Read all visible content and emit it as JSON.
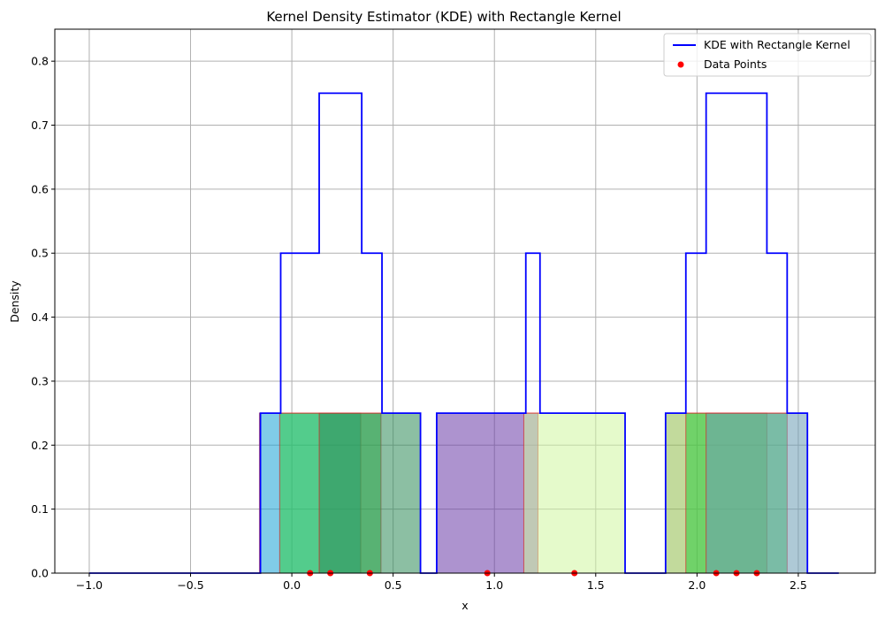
{
  "chart_data": {
    "type": "line",
    "title": "Kernel Density Estimator (KDE) with Rectangle Kernel",
    "xlabel": "x",
    "ylabel": "Density",
    "xlim": [
      -1.17,
      2.88
    ],
    "ylim": [
      0,
      0.85
    ],
    "xticks": [
      -1.0,
      -0.5,
      0.0,
      0.5,
      1.0,
      1.5,
      2.0,
      2.5
    ],
    "xtick_labels": [
      "−1.0",
      "−0.5",
      "0.0",
      "0.5",
      "1.0",
      "1.5",
      "2.0",
      "2.5"
    ],
    "yticks": [
      0.0,
      0.1,
      0.2,
      0.3,
      0.4,
      0.5,
      0.6,
      0.7,
      0.8
    ],
    "ytick_labels": [
      "0.0",
      "0.1",
      "0.2",
      "0.3",
      "0.4",
      "0.5",
      "0.6",
      "0.7",
      "0.8"
    ],
    "grid": true,
    "legend_position": "top-right",
    "series": [
      {
        "name": "KDE with Rectangle Kernel",
        "kind": "step-line",
        "color": "#0000ff",
        "x": [
          -1.0,
          -0.155,
          -0.155,
          -0.055,
          -0.055,
          0.135,
          0.135,
          0.345,
          0.345,
          0.445,
          0.445,
          0.635,
          0.635,
          0.715,
          0.715,
          1.155,
          1.155,
          1.225,
          1.225,
          1.645,
          1.645,
          1.845,
          1.845,
          1.945,
          1.945,
          2.045,
          2.045,
          2.345,
          2.345,
          2.445,
          2.445,
          2.545,
          2.545,
          2.7
        ],
        "y": [
          0,
          0,
          0.25,
          0.25,
          0.5,
          0.5,
          0.75,
          0.75,
          0.5,
          0.5,
          0.25,
          0.25,
          0,
          0,
          0.25,
          0.25,
          0.5,
          0.5,
          0.25,
          0.25,
          0,
          0,
          0.25,
          0.25,
          0.5,
          0.5,
          0.75,
          0.75,
          0.5,
          0.5,
          0.25,
          0.25,
          0,
          0
        ]
      },
      {
        "name": "Data Points",
        "kind": "scatter",
        "color": "#ff0000",
        "x": [
          0.09,
          0.19,
          0.385,
          0.965,
          1.395,
          2.095,
          2.195,
          2.295
        ],
        "y": [
          0,
          0,
          0,
          0,
          0,
          0,
          0,
          0
        ]
      }
    ],
    "kernels": [
      {
        "center": 0.09,
        "height": 0.25,
        "color": "#17a2d6"
      },
      {
        "center": 0.19,
        "height": 0.25,
        "color": "#2ecc40"
      },
      {
        "center": 0.385,
        "height": 0.25,
        "color": "#2e8b57"
      },
      {
        "center": 0.965,
        "height": 0.25,
        "color": "#6a3aa8"
      },
      {
        "center": 1.395,
        "height": 0.25,
        "color": "#d0f5a0"
      },
      {
        "center": 2.095,
        "height": 0.25,
        "color": "#8fbc4a"
      },
      {
        "center": 2.195,
        "height": 0.25,
        "color": "#2ecc40"
      },
      {
        "center": 2.295,
        "height": 0.25,
        "color": "#6b9cb5"
      }
    ],
    "kernel_half_width": 0.25,
    "kernel_edge_color": "#d62728"
  }
}
